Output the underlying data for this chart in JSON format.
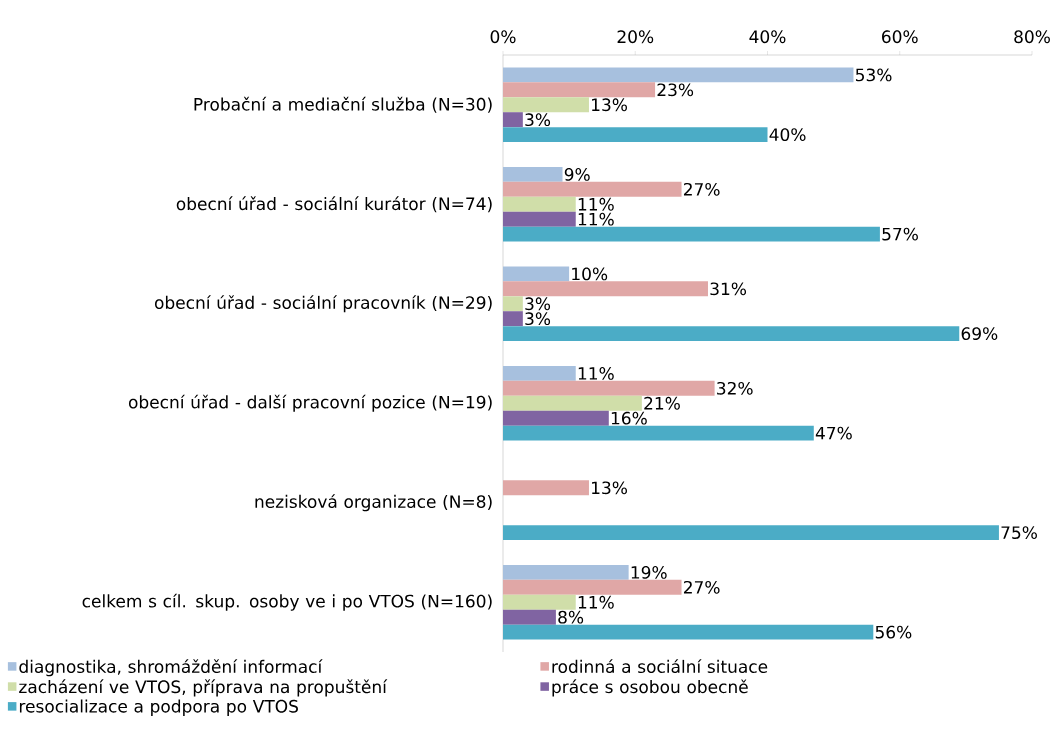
{
  "chart_data": {
    "type": "bar",
    "orientation": "horizontal",
    "categories": [
      "Probační a mediační služba (N=30)",
      "obecní úřad - sociální kurátor (N=74)",
      "obecní úřad - sociální pracovník (N=29)",
      "obecní úřad - další pracovní pozice (N=19)",
      "nezisková organizace (N=8)",
      "celkem s cíl. skup. osoby ve i po VTOS (N=160)"
    ],
    "series": [
      {
        "name": "diagnostika, shromáždění informací",
        "color": "#a7c0de",
        "values": [
          53,
          9,
          10,
          11,
          null,
          19
        ],
        "value_labels": [
          "53%",
          "9%",
          "10%",
          "11%",
          null,
          "19%"
        ]
      },
      {
        "name": "rodinná a sociální situace",
        "color": "#e0a7a6",
        "values": [
          23,
          27,
          31,
          32,
          13,
          27
        ],
        "value_labels": [
          "23%",
          "27%",
          "31%",
          "32%",
          "13%",
          "27%"
        ]
      },
      {
        "name": "zacházení ve VTOS, příprava na propuštění",
        "color": "#d0dea9",
        "values": [
          13,
          11,
          3,
          21,
          null,
          11
        ],
        "value_labels": [
          "13%",
          "11%",
          "3%",
          "21%",
          null,
          "11%"
        ]
      },
      {
        "name": "práce s osobou obecně",
        "color": "#8064a2",
        "values": [
          3,
          11,
          3,
          16,
          null,
          8
        ],
        "value_labels": [
          "3%",
          "11%",
          "3%",
          "16%",
          null,
          "8%"
        ]
      },
      {
        "name": "resocializace a podpora po VTOS",
        "color": "#4bacc6",
        "values": [
          40,
          57,
          69,
          47,
          75,
          56
        ],
        "value_labels": [
          "40%",
          "57%",
          "69%",
          "47%",
          "75%",
          "56%"
        ]
      }
    ],
    "xlim": [
      0,
      80
    ],
    "xticks": [
      {
        "value": 0,
        "label": "0%"
      },
      {
        "value": 20,
        "label": "20%"
      },
      {
        "value": 40,
        "label": "40%"
      },
      {
        "value": 60,
        "label": "60%"
      },
      {
        "value": 80,
        "label": "80%"
      }
    ],
    "legend": "bottom"
  }
}
